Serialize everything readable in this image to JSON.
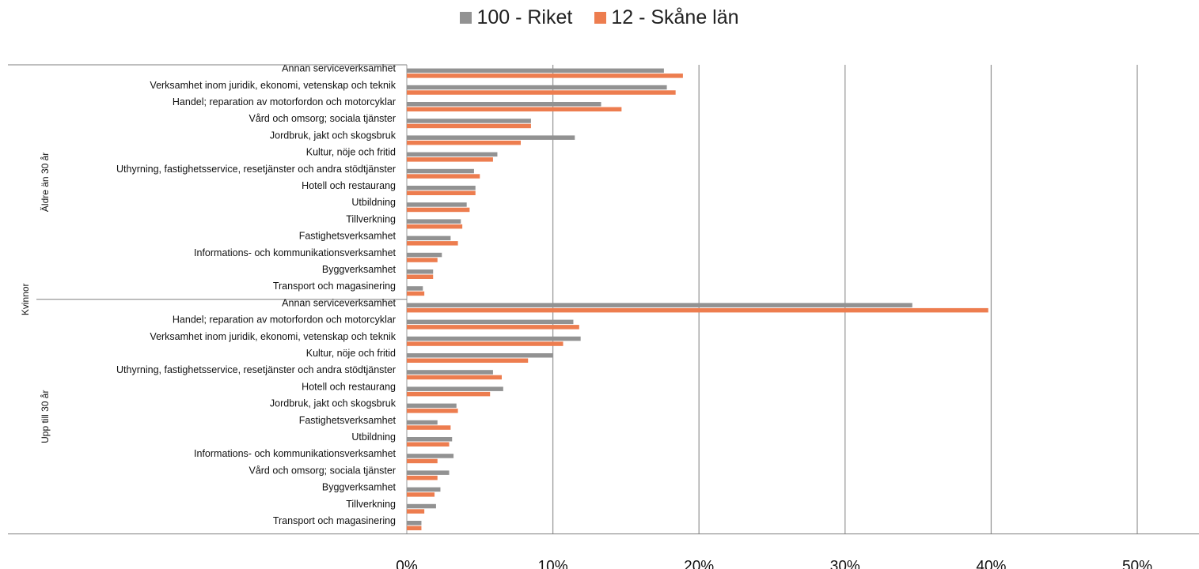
{
  "chart_data": {
    "type": "bar",
    "orientation": "horizontal",
    "title": "",
    "xlabel": "",
    "ylabel": "",
    "xlim": [
      0,
      50
    ],
    "x_ticks": [
      "0%",
      "10%",
      "20%",
      "30%",
      "40%",
      "50%"
    ],
    "grid": true,
    "legend_position": "top",
    "colors": {
      "riket": "#929292",
      "skane": "#ed7d4f",
      "grid": "#9a9a9a",
      "axis": "#7f7f7f"
    },
    "series": [
      {
        "name": "100 - Riket",
        "key": "riket"
      },
      {
        "name": "12 - Skåne län",
        "key": "skane"
      }
    ],
    "outer_group": "Kvinnor",
    "groups": [
      {
        "name": "Äldre än 30 år",
        "categories": [
          {
            "label": "Annan serviceverksamhet",
            "riket": 17.6,
            "skane": 18.9
          },
          {
            "label": "Verksamhet inom juridik, ekonomi, vetenskap och teknik",
            "riket": 17.8,
            "skane": 18.4
          },
          {
            "label": "Handel; reparation av motorfordon och motorcyklar",
            "riket": 13.3,
            "skane": 14.7
          },
          {
            "label": "Vård och omsorg; sociala tjänster",
            "riket": 8.5,
            "skane": 8.5
          },
          {
            "label": "Jordbruk, jakt och skogsbruk",
            "riket": 11.5,
            "skane": 7.8
          },
          {
            "label": "Kultur, nöje och fritid",
            "riket": 6.2,
            "skane": 5.9
          },
          {
            "label": "Uthyrning, fastighetsservice, resetjänster och andra stödtjänster",
            "riket": 4.6,
            "skane": 5.0
          },
          {
            "label": "Hotell och restaurang",
            "riket": 4.7,
            "skane": 4.7
          },
          {
            "label": "Utbildning",
            "riket": 4.1,
            "skane": 4.3
          },
          {
            "label": "Tillverkning",
            "riket": 3.7,
            "skane": 3.8
          },
          {
            "label": "Fastighetsverksamhet",
            "riket": 3.0,
            "skane": 3.5
          },
          {
            "label": "Informations- och kommunikationsverksamhet",
            "riket": 2.4,
            "skane": 2.1
          },
          {
            "label": "Byggverksamhet",
            "riket": 1.8,
            "skane": 1.8
          },
          {
            "label": "Transport och magasinering",
            "riket": 1.1,
            "skane": 1.2
          }
        ]
      },
      {
        "name": "Upp till 30 år",
        "categories": [
          {
            "label": "Annan serviceverksamhet",
            "riket": 34.6,
            "skane": 39.8
          },
          {
            "label": "Handel; reparation av motorfordon och motorcyklar",
            "riket": 11.4,
            "skane": 11.8
          },
          {
            "label": "Verksamhet inom juridik, ekonomi, vetenskap och teknik",
            "riket": 11.9,
            "skane": 10.7
          },
          {
            "label": "Kultur, nöje och fritid",
            "riket": 10.0,
            "skane": 8.3
          },
          {
            "label": "Uthyrning, fastighetsservice, resetjänster och andra stödtjänster",
            "riket": 5.9,
            "skane": 6.5
          },
          {
            "label": "Hotell och restaurang",
            "riket": 6.6,
            "skane": 5.7
          },
          {
            "label": "Jordbruk, jakt och skogsbruk",
            "riket": 3.4,
            "skane": 3.5
          },
          {
            "label": "Fastighetsverksamhet",
            "riket": 2.1,
            "skane": 3.0
          },
          {
            "label": "Utbildning",
            "riket": 3.1,
            "skane": 2.9
          },
          {
            "label": "Informations- och kommunikationsverksamhet",
            "riket": 3.2,
            "skane": 2.1
          },
          {
            "label": "Vård och omsorg; sociala tjänster",
            "riket": 2.9,
            "skane": 2.1
          },
          {
            "label": "Byggverksamhet",
            "riket": 2.3,
            "skane": 1.9
          },
          {
            "label": "Tillverkning",
            "riket": 2.0,
            "skane": 1.2
          },
          {
            "label": "Transport och magasinering",
            "riket": 1.0,
            "skane": 1.0
          }
        ]
      }
    ]
  }
}
